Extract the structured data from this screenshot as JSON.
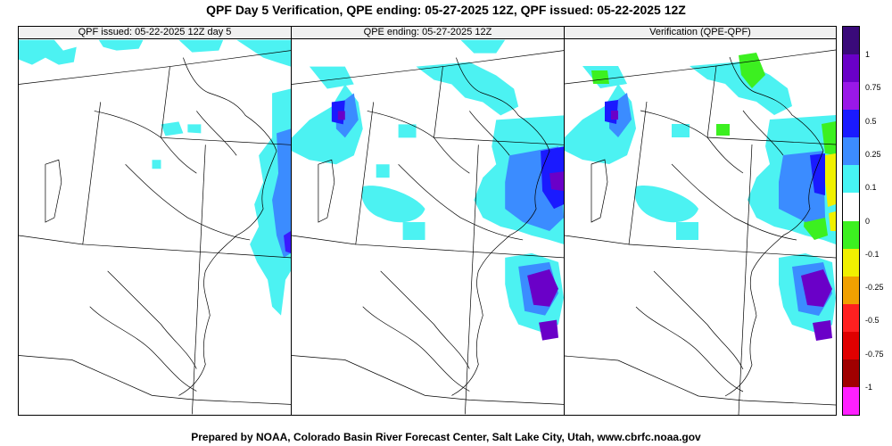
{
  "title": "QPF Day 5 Verification, QPE ending: 05-27-2025 12Z, QPF issued: 05-22-2025 12Z",
  "panels": [
    {
      "title": "QPF issued: 05-22-2025 12Z day 5"
    },
    {
      "title": "QPE ending: 05-27-2025 12Z"
    },
    {
      "title": "Verification (QPE-QPF)"
    }
  ],
  "legend": {
    "labels": [
      "1",
      "0.75",
      "0.5",
      "0.25",
      "0.1",
      "0",
      "-0.1",
      "-0.25",
      "-0.5",
      "-0.75",
      "-1"
    ],
    "colors": [
      "#3a0a7a",
      "#6a00c8",
      "#9a18e8",
      "#1a1aff",
      "#3c8cff",
      "#46f4f4",
      "#ffffff",
      "#3cf020",
      "#f0f000",
      "#f0a000",
      "#ff2020",
      "#e00000",
      "#a00000",
      "#ff20ff"
    ]
  },
  "footer": "Prepared by NOAA, Colorado Basin River Forecast Center, Salt Lake City, Utah, www.cbrfc.noaa.gov"
}
